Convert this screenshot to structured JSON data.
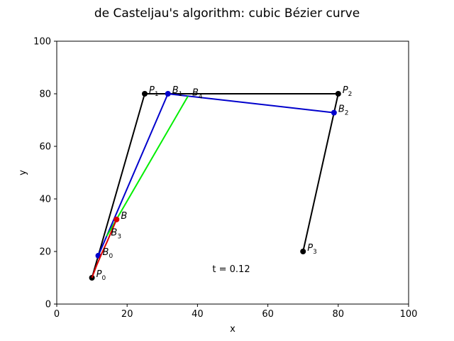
{
  "chart_data": {
    "type": "line",
    "title": "de Casteljau's algorithm: cubic Bézier curve",
    "xlabel": "x",
    "ylabel": "y",
    "xlim": [
      0,
      100
    ],
    "ylim": [
      0,
      100
    ],
    "xticks": [
      "0",
      "20",
      "40",
      "60",
      "80",
      "100"
    ],
    "yticks": [
      "0",
      "20",
      "40",
      "60",
      "80",
      "100"
    ],
    "annotation": "t = 0.12",
    "grid": false,
    "series": [
      {
        "role": "control-polygon",
        "color": "#000000",
        "marker": "circle",
        "x": [
          10,
          25,
          80,
          70
        ],
        "y": [
          10,
          80,
          80,
          20
        ]
      },
      {
        "role": "first-level",
        "color": "#0000cc",
        "marker": "circle",
        "x": [
          11.8,
          31.6,
          78.8
        ],
        "y": [
          18.4,
          80,
          72.8
        ]
      },
      {
        "role": "second-level",
        "color": "#00ee00",
        "marker": "none",
        "x": [
          14.2,
          37.3
        ],
        "y": [
          25.8,
          79.1
        ]
      },
      {
        "role": "curve-traced",
        "color": "#dd0000",
        "marker": "none",
        "x": [
          10,
          11.3,
          12.7,
          14.3,
          17.0
        ],
        "y": [
          10,
          14.6,
          19.0,
          23.7,
          32.2
        ]
      }
    ],
    "points": [
      {
        "base": "P",
        "sub": "0",
        "x": 10,
        "y": 10,
        "color": "#000000"
      },
      {
        "base": "P",
        "sub": "1",
        "x": 25,
        "y": 80,
        "color": "#000000"
      },
      {
        "base": "P",
        "sub": "2",
        "x": 80,
        "y": 80,
        "color": "#000000"
      },
      {
        "base": "P",
        "sub": "3",
        "x": 70,
        "y": 20,
        "color": "#000000"
      },
      {
        "base": "B",
        "sub": "0",
        "x": 11.8,
        "y": 18.4,
        "color": "#0000cc"
      },
      {
        "base": "B",
        "sub": "1",
        "x": 31.6,
        "y": 80,
        "color": "#0000cc"
      },
      {
        "base": "B",
        "sub": "2",
        "x": 78.8,
        "y": 72.8,
        "color": "#0000cc"
      },
      {
        "base": "B",
        "sub": "3",
        "x": 14.2,
        "y": 25.8,
        "color": "#00ee00"
      },
      {
        "base": "B",
        "sub": "4",
        "x": 37.3,
        "y": 79.1,
        "color": "#00ee00"
      },
      {
        "base": "B",
        "sub": "",
        "x": 17.0,
        "y": 32.2,
        "color": "#dd0000"
      }
    ]
  }
}
